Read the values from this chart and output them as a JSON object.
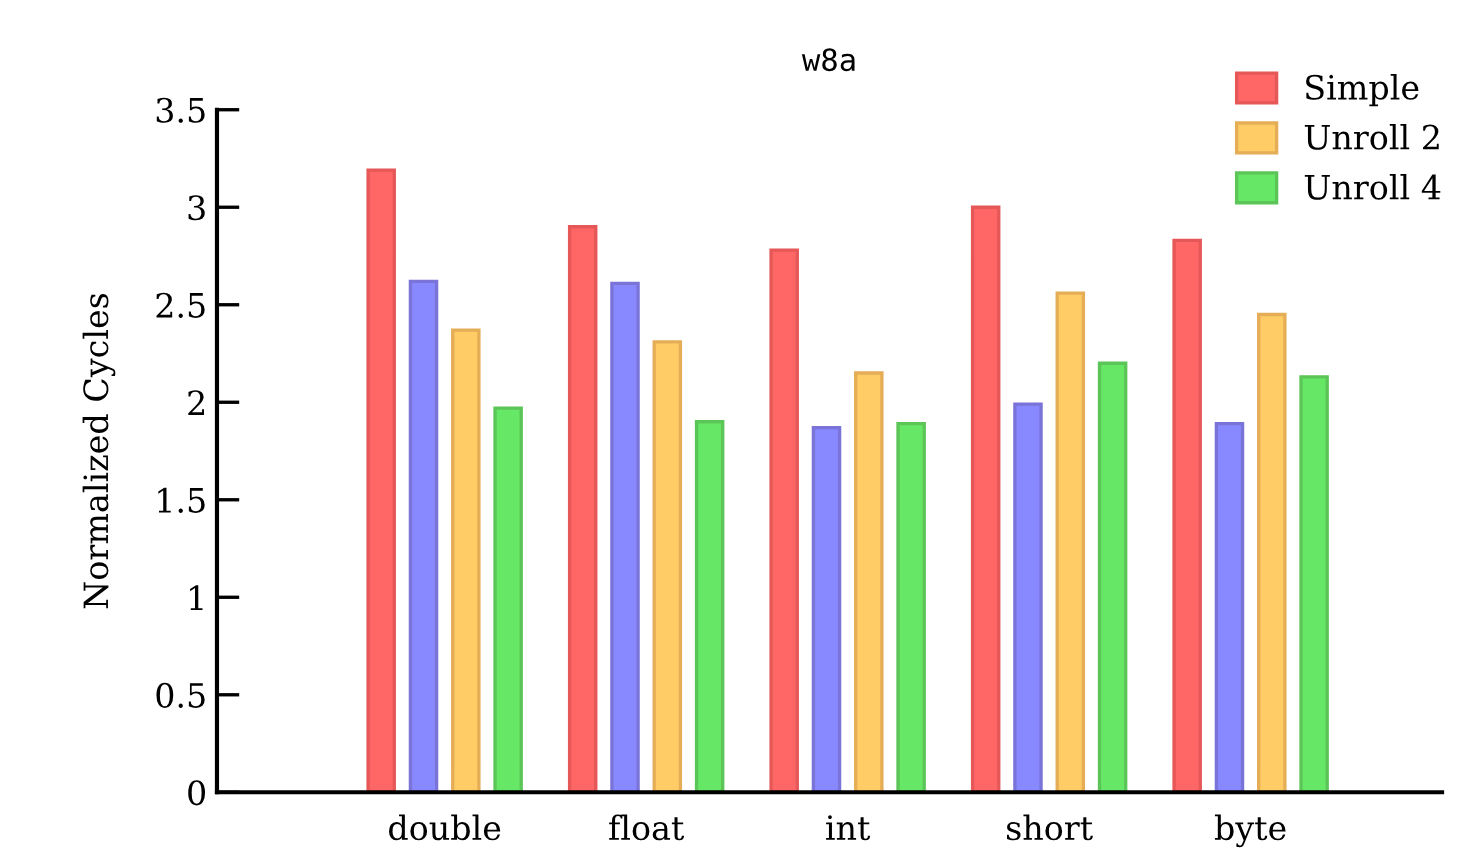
{
  "chart_data": {
    "type": "bar",
    "title": "w8a",
    "ylabel": "Normalized Cycles",
    "categories": [
      "double",
      "float",
      "int",
      "short",
      "byte"
    ],
    "series": [
      {
        "name": "Simple",
        "color": "#ff6666",
        "values": [
          3.19,
          2.9,
          2.78,
          3.0,
          2.83
        ]
      },
      {
        "color": "#8888ff",
        "values": [
          2.62,
          2.61,
          1.87,
          1.99,
          1.89
        ]
      },
      {
        "name": "Unroll 2",
        "color": "#ffcc66",
        "values": [
          2.37,
          2.31,
          2.15,
          2.56,
          2.45
        ]
      },
      {
        "name": "Unroll 4",
        "color": "#66e866",
        "values": [
          1.97,
          1.9,
          1.89,
          2.2,
          2.13
        ]
      }
    ],
    "ylim": [
      0,
      3.5
    ],
    "yticks": [
      0,
      0.5,
      1,
      1.5,
      2,
      2.5,
      3,
      3.5
    ],
    "grid": false,
    "legend": "top right"
  }
}
